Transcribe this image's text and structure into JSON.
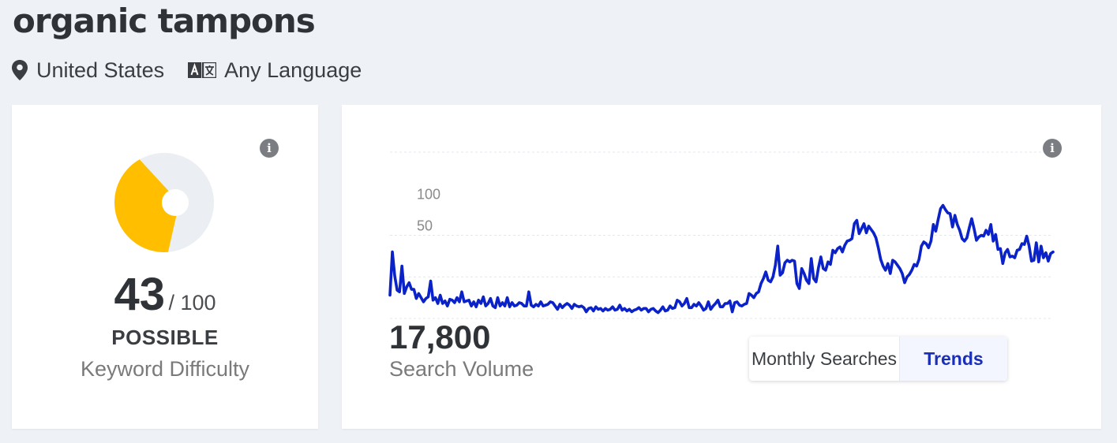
{
  "keyword": "organic tampons",
  "location": {
    "label": "United States",
    "icon": "map-pin-icon"
  },
  "language": {
    "label": "Any Language",
    "icon": "translate-icon"
  },
  "difficulty": {
    "score": 43,
    "max": "/ 100",
    "rating": "POSSIBLE",
    "label": "Keyword Difficulty",
    "fill_fraction": 0.43,
    "colors": {
      "filled": "#FFBE00",
      "empty": "#EBEEF2"
    },
    "info_icon": "info-icon"
  },
  "volume": {
    "value": "17,800",
    "label": "Search Volume",
    "info_icon": "info-icon"
  },
  "view_toggle": {
    "options": [
      "Monthly Searches",
      "Trends"
    ],
    "selected": "Trends"
  },
  "chart_data": {
    "type": "line",
    "title": "",
    "xlabel": "",
    "ylabel": "",
    "ylim": [
      0,
      200
    ],
    "yticks": [
      100,
      50
    ],
    "grid": true,
    "line_color": "#0A22C8",
    "values": [
      28,
      80,
      51,
      34,
      32,
      63,
      30,
      38,
      43,
      35,
      35,
      24,
      30,
      25,
      20,
      24,
      26,
      45,
      22,
      25,
      18,
      28,
      18,
      21,
      15,
      23,
      22,
      19,
      25,
      20,
      32,
      20,
      21,
      22,
      15,
      20,
      14,
      22,
      18,
      26,
      15,
      18,
      24,
      15,
      13,
      25,
      15,
      19,
      15,
      25,
      14,
      19,
      15,
      16,
      19,
      18,
      15,
      15,
      32,
      16,
      14,
      17,
      15,
      20,
      15,
      16,
      17,
      20,
      19,
      15,
      11,
      17,
      13,
      16,
      18,
      16,
      12,
      17,
      15,
      14,
      15,
      13,
      8,
      12,
      13,
      9,
      14,
      11,
      12,
      9,
      12,
      10,
      11,
      14,
      10,
      11,
      16,
      10,
      12,
      9,
      11,
      8,
      10,
      11,
      13,
      10,
      12,
      12,
      8,
      11,
      12,
      9,
      7,
      10,
      14,
      9,
      10,
      15,
      12,
      13,
      22,
      20,
      15,
      18,
      24,
      13,
      13,
      17,
      15,
      19,
      15,
      10,
      12,
      20,
      11,
      15,
      18,
      22,
      14,
      14,
      18,
      18,
      21,
      8,
      19,
      20,
      16,
      15,
      17,
      18,
      30,
      28,
      25,
      30,
      32,
      42,
      48,
      56,
      46,
      44,
      50,
      64,
      87,
      52,
      55,
      67,
      70,
      68,
      70,
      69,
      42,
      36,
      60,
      54,
      46,
      42,
      72,
      48,
      44,
      61,
      74,
      60,
      58,
      68,
      65,
      82,
      79,
      84,
      86,
      80,
      88,
      93,
      94,
      96,
      114,
      118,
      102,
      108,
      114,
      103,
      111,
      107,
      103,
      97,
      85,
      71,
      63,
      58,
      66,
      54,
      70,
      68,
      64,
      60,
      54,
      43,
      50,
      53,
      58,
      65,
      63,
      71,
      87,
      92,
      90,
      85,
      93,
      113,
      105,
      119,
      132,
      136,
      131,
      127,
      126,
      110,
      124,
      113,
      106,
      96,
      93,
      97,
      109,
      120,
      108,
      94,
      98,
      100,
      99,
      106,
      101,
      113,
      93,
      101,
      83,
      84,
      66,
      79,
      83,
      74,
      75,
      73,
      82,
      83,
      90,
      89,
      99,
      87,
      69,
      70,
      91,
      68,
      87,
      73,
      79,
      69,
      78,
      80
    ]
  }
}
